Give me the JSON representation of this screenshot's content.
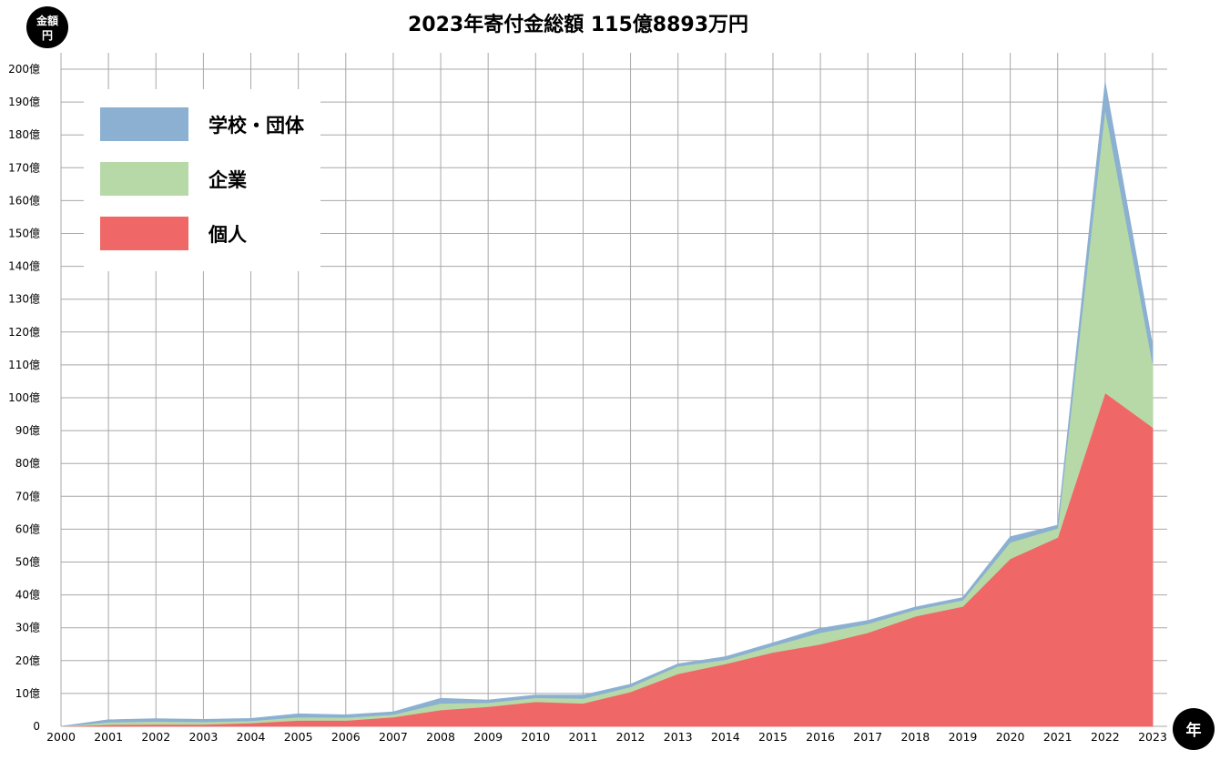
{
  "chart_data": {
    "type": "area",
    "stacked": true,
    "title": "2023年寄付金総額 115億8893万円",
    "y_unit_badge": [
      "金額",
      "円"
    ],
    "x_unit_badge": "年",
    "x": [
      "2000",
      "2001",
      "2002",
      "2003",
      "2004",
      "2005",
      "2006",
      "2007",
      "2008",
      "2009",
      "2010",
      "2011",
      "2012",
      "2013",
      "2014",
      "2015",
      "2016",
      "2017",
      "2018",
      "2019",
      "2020",
      "2021",
      "2022",
      "2023"
    ],
    "ylim": [
      0,
      200
    ],
    "y_ticks": [
      0,
      10,
      20,
      30,
      40,
      50,
      60,
      70,
      80,
      90,
      100,
      110,
      120,
      130,
      140,
      150,
      160,
      170,
      180,
      190,
      200
    ],
    "y_tick_labels": [
      "0",
      "10億",
      "20億",
      "30億",
      "40億",
      "50億",
      "60億",
      "70億",
      "80億",
      "90億",
      "100億",
      "110億",
      "120億",
      "130億",
      "140億",
      "150億",
      "160億",
      "170億",
      "180億",
      "190億",
      "200億"
    ],
    "grid": true,
    "legend_position": "top-left",
    "series": [
      {
        "name": "個人",
        "color": "#f06767",
        "values": [
          0,
          0.5,
          0.6,
          0.6,
          1.0,
          1.8,
          1.8,
          2.8,
          5.0,
          6.0,
          7.5,
          7.0,
          10.5,
          16.0,
          19.0,
          22.5,
          25.0,
          28.5,
          33.5,
          36.5,
          51.0,
          57.5,
          101.5,
          91.0
        ]
      },
      {
        "name": "企業",
        "color": "#b7d9a8",
        "values": [
          0,
          0.8,
          0.9,
          0.8,
          0.7,
          1.0,
          0.9,
          0.8,
          2.0,
          1.2,
          1.2,
          1.5,
          1.5,
          2.3,
          1.3,
          2.0,
          3.5,
          2.7,
          2.0,
          1.9,
          5.0,
          2.8,
          86.5,
          19.5
        ]
      },
      {
        "name": "学校・団体",
        "color": "#8bb0d1",
        "values": [
          0,
          0.7,
          0.8,
          0.7,
          0.7,
          1.0,
          0.8,
          0.8,
          1.5,
          0.8,
          0.8,
          1.0,
          0.8,
          0.7,
          0.9,
          0.9,
          1.3,
          1.0,
          0.8,
          0.8,
          1.7,
          0.9,
          8.0,
          5.3
        ]
      }
    ],
    "legend_order": [
      "学校・団体",
      "企業",
      "個人"
    ]
  }
}
